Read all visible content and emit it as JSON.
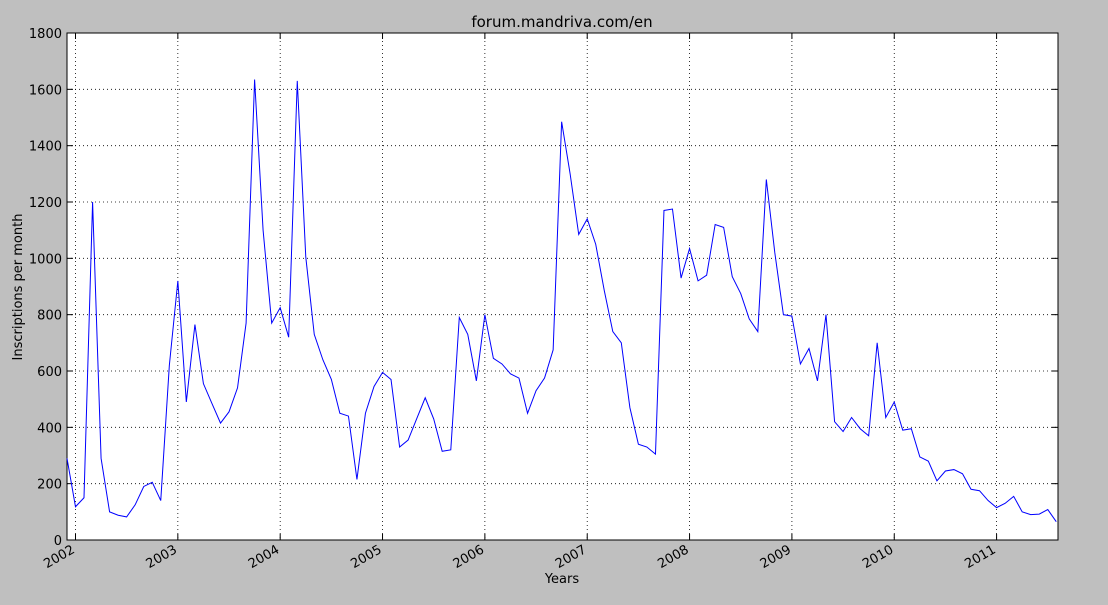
{
  "chart_data": {
    "type": "line",
    "title": "forum.mandriva.com/en",
    "x_label": "Years",
    "y_label": "Inscriptions per month",
    "x": [
      2001.917,
      2002.0,
      2002.083,
      2002.167,
      2002.25,
      2002.333,
      2002.417,
      2002.5,
      2002.583,
      2002.667,
      2002.75,
      2002.833,
      2002.917,
      2003.0,
      2003.083,
      2003.167,
      2003.25,
      2003.333,
      2003.417,
      2003.5,
      2003.583,
      2003.667,
      2003.75,
      2003.833,
      2003.917,
      2004.0,
      2004.083,
      2004.167,
      2004.25,
      2004.333,
      2004.417,
      2004.5,
      2004.583,
      2004.667,
      2004.75,
      2004.833,
      2004.917,
      2005.0,
      2005.083,
      2005.167,
      2005.25,
      2005.333,
      2005.417,
      2005.5,
      2005.583,
      2005.667,
      2005.75,
      2005.833,
      2005.917,
      2006.0,
      2006.083,
      2006.167,
      2006.25,
      2006.333,
      2006.417,
      2006.5,
      2006.583,
      2006.667,
      2006.75,
      2006.833,
      2006.917,
      2007.0,
      2007.083,
      2007.167,
      2007.25,
      2007.333,
      2007.417,
      2007.5,
      2007.583,
      2007.667,
      2007.75,
      2007.833,
      2007.917,
      2008.0,
      2008.083,
      2008.167,
      2008.25,
      2008.333,
      2008.417,
      2008.5,
      2008.583,
      2008.667,
      2008.75,
      2008.833,
      2008.917,
      2009.0,
      2009.083,
      2009.167,
      2009.25,
      2009.333,
      2009.417,
      2009.5,
      2009.583,
      2009.667,
      2009.75,
      2009.833,
      2009.917,
      2010.0,
      2010.083,
      2010.167,
      2010.25,
      2010.333,
      2010.417,
      2010.5,
      2010.583,
      2010.667,
      2010.75,
      2010.833,
      2010.917,
      2011.0,
      2011.083,
      2011.167,
      2011.25,
      2011.333,
      2011.417,
      2011.5,
      2011.583
    ],
    "series": [
      {
        "name": "inscriptions",
        "color": "#0000ff",
        "values": [
          290,
          118,
          150,
          1200,
          290,
          100,
          88,
          82,
          125,
          190,
          205,
          140,
          620,
          920,
          490,
          765,
          555,
          485,
          415,
          455,
          540,
          770,
          1635,
          1100,
          770,
          825,
          720,
          1630,
          1005,
          730,
          640,
          570,
          450,
          440,
          215,
          450,
          545,
          595,
          570,
          330,
          355,
          430,
          505,
          430,
          315,
          320,
          790,
          730,
          565,
          800,
          645,
          625,
          590,
          575,
          450,
          530,
          575,
          675,
          1485,
          1300,
          1085,
          1140,
          1050,
          885,
          740,
          700,
          470,
          340,
          330,
          305,
          1170,
          1175,
          930,
          1035,
          920,
          940,
          1120,
          1110,
          935,
          875,
          785,
          740,
          1280,
          1020,
          800,
          795,
          625,
          680,
          565,
          800,
          420,
          385,
          435,
          395,
          370,
          700,
          435,
          490,
          390,
          395,
          295,
          280,
          210,
          245,
          250,
          235,
          180,
          175,
          140,
          115,
          130,
          155,
          100,
          90,
          92,
          108,
          65
        ]
      }
    ],
    "xlim": [
      2001.917,
      2011.6
    ],
    "xticks": [
      2002,
      2003,
      2004,
      2005,
      2006,
      2007,
      2008,
      2009,
      2010,
      2011
    ],
    "ylim": [
      0,
      1800
    ],
    "yticks": [
      0,
      200,
      400,
      600,
      800,
      1000,
      1200,
      1400,
      1600,
      1800
    ],
    "grid": true
  }
}
